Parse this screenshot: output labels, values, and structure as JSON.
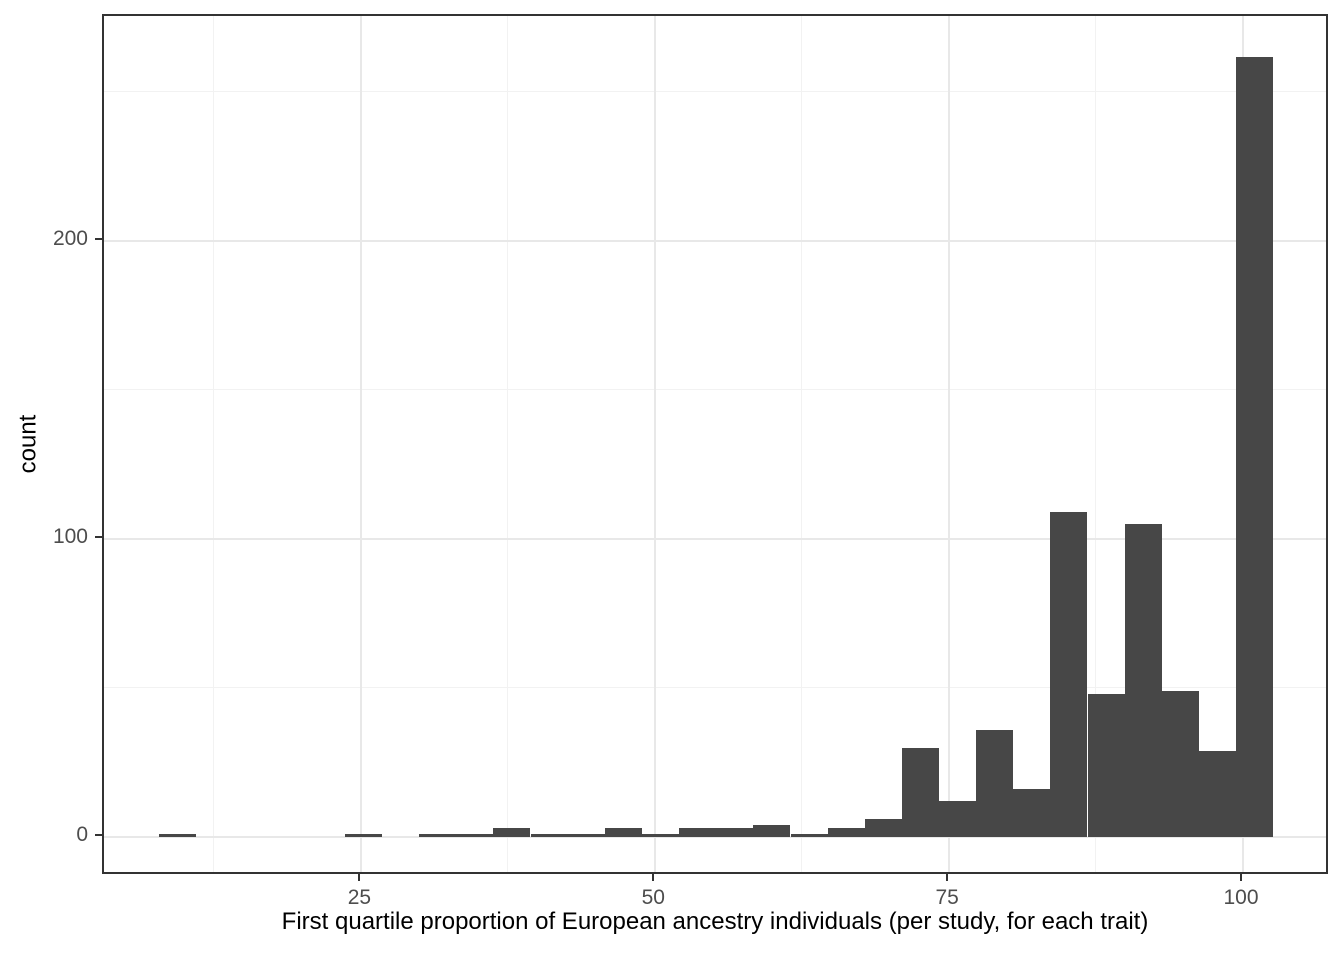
{
  "chart_data": {
    "type": "bar",
    "subtype": "histogram",
    "title": "",
    "xlabel": "First quartile proportion of European ancestry individuals (per study, for each trait)",
    "ylabel": "count",
    "legend_position": "none",
    "grid": "on",
    "bin_width": 3.16,
    "bins": [
      {
        "center": 9.38,
        "count": 1
      },
      {
        "center": 12.54,
        "count": 0
      },
      {
        "center": 15.7,
        "count": 0
      },
      {
        "center": 18.86,
        "count": 0
      },
      {
        "center": 22.02,
        "count": 0
      },
      {
        "center": 25.17,
        "count": 1
      },
      {
        "center": 28.33,
        "count": 0
      },
      {
        "center": 31.49,
        "count": 1
      },
      {
        "center": 34.65,
        "count": 1
      },
      {
        "center": 37.81,
        "count": 3
      },
      {
        "center": 40.97,
        "count": 1
      },
      {
        "center": 44.13,
        "count": 1
      },
      {
        "center": 47.28,
        "count": 3
      },
      {
        "center": 50.44,
        "count": 1
      },
      {
        "center": 53.6,
        "count": 3
      },
      {
        "center": 56.76,
        "count": 3
      },
      {
        "center": 59.92,
        "count": 4
      },
      {
        "center": 63.08,
        "count": 1
      },
      {
        "center": 66.24,
        "count": 3
      },
      {
        "center": 69.39,
        "count": 6
      },
      {
        "center": 72.55,
        "count": 30
      },
      {
        "center": 75.71,
        "count": 12
      },
      {
        "center": 78.87,
        "count": 36
      },
      {
        "center": 82.03,
        "count": 16
      },
      {
        "center": 85.19,
        "count": 109
      },
      {
        "center": 88.35,
        "count": 48
      },
      {
        "center": 91.5,
        "count": 105
      },
      {
        "center": 94.66,
        "count": 49
      },
      {
        "center": 97.82,
        "count": 29
      },
      {
        "center": 100.98,
        "count": 262
      }
    ],
    "x_ticks": [
      25,
      50,
      75,
      100
    ],
    "x_minor_ticks": [
      12.5,
      37.5,
      62.5,
      87.5
    ],
    "y_ticks": [
      0,
      100,
      200
    ],
    "y_minor_ticks": [
      50,
      150,
      250
    ],
    "xlim": [
      3.1,
      107.4
    ],
    "ylim": [
      -13.1,
      275.6
    ],
    "colors": {
      "bar_fill": "#474747",
      "panel_border": "#333333",
      "grid_major": "#e8e8e8",
      "grid_minor": "#f2f2f2",
      "axis_text": "#4d4d4d",
      "axis_title": "#000000",
      "background": "#ffffff"
    }
  }
}
